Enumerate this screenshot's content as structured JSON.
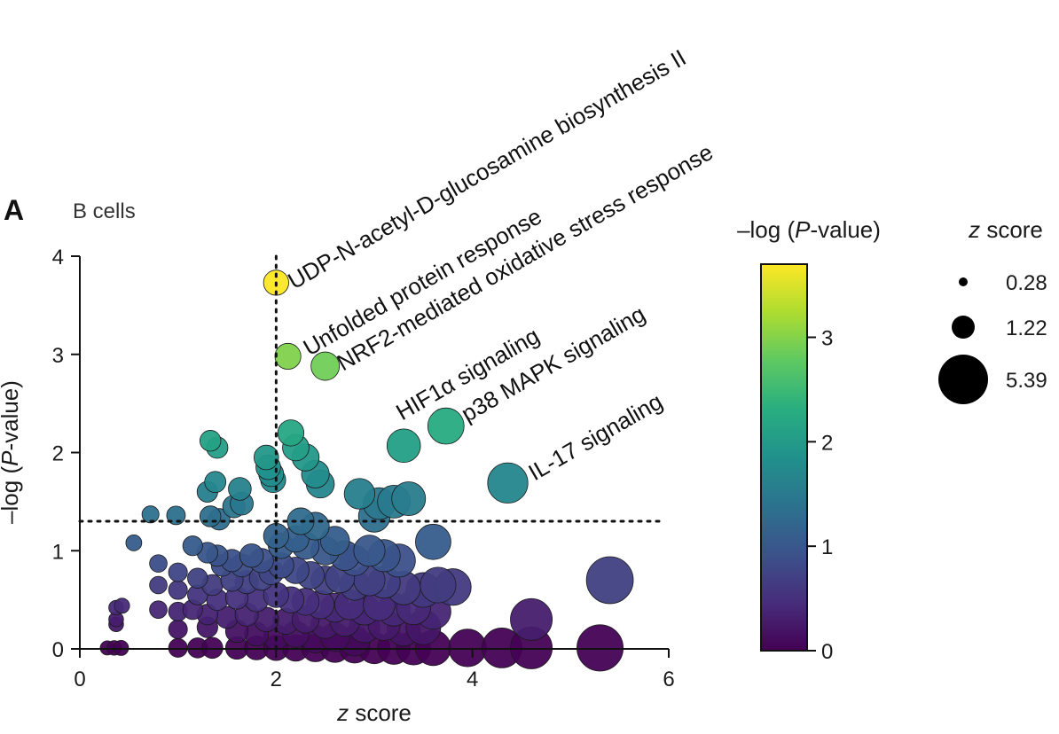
{
  "panel_label": "A",
  "subtitle": "B cells",
  "chart_data": {
    "type": "scatter",
    "xlabel_italic": "z",
    "xlabel_rest": " score",
    "ylabel_pre": "–log (",
    "ylabel_italic": "P",
    "ylabel_post": "-value)",
    "xlim": [
      0,
      6
    ],
    "ylim": [
      0,
      4
    ],
    "xticks": [
      0,
      2,
      4,
      6
    ],
    "yticks": [
      0,
      1,
      2,
      3,
      4
    ],
    "thresholds": {
      "x": 2,
      "y": 1.3
    },
    "colorbar": {
      "title_pre": "–log (",
      "title_italic": "P",
      "title_post": "-value)",
      "range": [
        0,
        3.7
      ],
      "ticks": [
        0,
        1,
        2,
        3
      ],
      "colormap": "viridis"
    },
    "size_legend": {
      "title_italic": "z",
      "title_rest": " score",
      "entries": [
        {
          "label": "0.28",
          "value": 0.28
        },
        {
          "label": "1.22",
          "value": 1.22
        },
        {
          "label": "5.39",
          "value": 5.39
        }
      ]
    },
    "labeled_points": [
      {
        "label": "UDP-N-acetyl-D-glucosamine biosynthesis II",
        "x": 2.0,
        "y": 3.73
      },
      {
        "label": "Unfolded protein response",
        "x": 2.12,
        "y": 2.98
      },
      {
        "label": "NRF2-mediated oxidative stress response",
        "x": 2.5,
        "y": 2.88
      },
      {
        "label": "HIF1α signaling",
        "x": 3.3,
        "y": 2.07
      },
      {
        "label": "p38 MAPK signaling",
        "x": 3.73,
        "y": 2.27
      },
      {
        "label": "IL-17 signaling",
        "x": 4.36,
        "y": 1.69
      }
    ],
    "points": [
      [
        1.33,
        2.12
      ],
      [
        1.4,
        2.05
      ],
      [
        1.3,
        1.6
      ],
      [
        1.38,
        1.7
      ],
      [
        1.63,
        1.63
      ],
      [
        1.65,
        1.48
      ],
      [
        1.57,
        1.45
      ],
      [
        1.33,
        1.35
      ],
      [
        1.42,
        1.32
      ],
      [
        0.72,
        1.37
      ],
      [
        0.98,
        1.36
      ],
      [
        0.55,
        1.08
      ],
      [
        1.9,
        1.95
      ],
      [
        1.92,
        1.85
      ],
      [
        1.95,
        1.78
      ],
      [
        1.97,
        1.72
      ],
      [
        2.15,
        2.2
      ],
      [
        2.2,
        2.05
      ],
      [
        2.3,
        1.95
      ],
      [
        2.4,
        1.78
      ],
      [
        2.45,
        1.68
      ],
      [
        2.85,
        1.58
      ],
      [
        3.05,
        1.48
      ],
      [
        3.2,
        1.5
      ],
      [
        3.35,
        1.53
      ],
      [
        3.0,
        1.35
      ],
      [
        2.25,
        1.3
      ],
      [
        2.4,
        1.25
      ],
      [
        2.0,
        1.15
      ],
      [
        2.05,
        1.05
      ],
      [
        2.2,
        1.12
      ],
      [
        2.3,
        1.05
      ],
      [
        2.5,
        1.0
      ],
      [
        2.6,
        1.1
      ],
      [
        2.7,
        0.95
      ],
      [
        2.8,
        0.9
      ],
      [
        2.95,
        1.0
      ],
      [
        3.1,
        0.95
      ],
      [
        3.25,
        0.9
      ],
      [
        3.6,
        1.09
      ],
      [
        1.15,
        1.05
      ],
      [
        1.3,
        0.98
      ],
      [
        1.4,
        0.95
      ],
      [
        1.45,
        0.85
      ],
      [
        1.55,
        0.9
      ],
      [
        1.65,
        0.85
      ],
      [
        1.75,
        0.95
      ],
      [
        1.85,
        0.9
      ],
      [
        0.8,
        0.87
      ],
      [
        1.0,
        0.78
      ],
      [
        1.2,
        0.72
      ],
      [
        1.35,
        0.65
      ],
      [
        1.55,
        0.7
      ],
      [
        1.7,
        0.68
      ],
      [
        1.85,
        0.72
      ],
      [
        1.95,
        0.78
      ],
      [
        2.05,
        0.85
      ],
      [
        2.2,
        0.8
      ],
      [
        2.35,
        0.75
      ],
      [
        2.5,
        0.7
      ],
      [
        2.65,
        0.72
      ],
      [
        2.8,
        0.65
      ],
      [
        2.95,
        0.7
      ],
      [
        3.1,
        0.68
      ],
      [
        3.3,
        0.62
      ],
      [
        3.5,
        0.6
      ],
      [
        3.65,
        0.65
      ],
      [
        3.8,
        0.63
      ],
      [
        5.4,
        0.7
      ],
      [
        0.8,
        0.65
      ],
      [
        1.0,
        0.6
      ],
      [
        1.2,
        0.55
      ],
      [
        1.4,
        0.5
      ],
      [
        1.6,
        0.52
      ],
      [
        1.8,
        0.5
      ],
      [
        2.0,
        0.55
      ],
      [
        2.15,
        0.5
      ],
      [
        2.3,
        0.48
      ],
      [
        2.45,
        0.45
      ],
      [
        2.6,
        0.42
      ],
      [
        2.75,
        0.45
      ],
      [
        2.9,
        0.4
      ],
      [
        3.05,
        0.45
      ],
      [
        3.2,
        0.4
      ],
      [
        3.4,
        0.42
      ],
      [
        3.6,
        0.38
      ],
      [
        0.8,
        0.4
      ],
      [
        1.0,
        0.38
      ],
      [
        1.15,
        0.4
      ],
      [
        1.3,
        0.35
      ],
      [
        1.5,
        0.32
      ],
      [
        1.7,
        0.35
      ],
      [
        1.9,
        0.3
      ],
      [
        2.1,
        0.28
      ],
      [
        2.3,
        0.3
      ],
      [
        2.5,
        0.25
      ],
      [
        2.7,
        0.28
      ],
      [
        2.9,
        0.22
      ],
      [
        3.1,
        0.25
      ],
      [
        3.3,
        0.2
      ],
      [
        3.5,
        0.22
      ],
      [
        4.6,
        0.3
      ],
      [
        0.37,
        0.42
      ],
      [
        0.43,
        0.44
      ],
      [
        0.37,
        0.3
      ],
      [
        0.37,
        0.25
      ],
      [
        1.0,
        0.2
      ],
      [
        1.3,
        0.22
      ],
      [
        1.6,
        0.18
      ],
      [
        1.8,
        0.15
      ],
      [
        2.0,
        0.12
      ],
      [
        2.2,
        0.15
      ],
      [
        2.4,
        0.1
      ],
      [
        2.6,
        0.12
      ],
      [
        2.8,
        0.08
      ],
      [
        0.28,
        0.01
      ],
      [
        0.35,
        0.01
      ],
      [
        0.42,
        0.01
      ],
      [
        1.0,
        0.01
      ],
      [
        1.2,
        0.01
      ],
      [
        1.35,
        0.01
      ],
      [
        1.6,
        0.01
      ],
      [
        1.8,
        0.01
      ],
      [
        2.0,
        0.01
      ],
      [
        2.2,
        0.01
      ],
      [
        2.4,
        0.01
      ],
      [
        2.6,
        0.01
      ],
      [
        2.8,
        0.01
      ],
      [
        3.0,
        0.01
      ],
      [
        3.2,
        0.01
      ],
      [
        3.4,
        0.01
      ],
      [
        3.6,
        0.01
      ],
      [
        3.95,
        0.01
      ],
      [
        4.3,
        0.01
      ],
      [
        4.6,
        0.01
      ],
      [
        5.3,
        0.01
      ]
    ]
  }
}
